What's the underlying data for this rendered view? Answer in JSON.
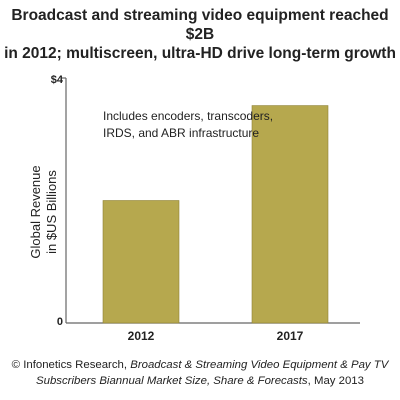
{
  "title": {
    "line1": "Broadcast and streaming video equipment reached $2B",
    "line2": "in 2012; multiscreen, ultra-HD drive long-term growth"
  },
  "chart_data": {
    "type": "bar",
    "categories": [
      "2012",
      "2017"
    ],
    "values": [
      2.0,
      3.55
    ],
    "ylim": [
      0,
      4
    ],
    "ytick_labels": [
      {
        "value": 4,
        "label": "$4"
      },
      {
        "value": 0,
        "label": "0"
      }
    ],
    "ylabel_lines": [
      "Global Revenue",
      "in $US Billions"
    ],
    "annotation": [
      "Includes encoders, transcoders,",
      "IRDS, and ABR infrastructure"
    ],
    "grid": false,
    "bar_color": "#b6a84e",
    "bar_edge_color": "#8f8236",
    "axis_color": "#666666"
  },
  "source": {
    "prefix": "© Infonetics Research, ",
    "report_a": "Broadcast & Streaming Video Equipment & Pay TV",
    "report_b": "Subscribers Biannual Market Size, Share & Forecasts",
    "suffix": ", May 2013"
  }
}
